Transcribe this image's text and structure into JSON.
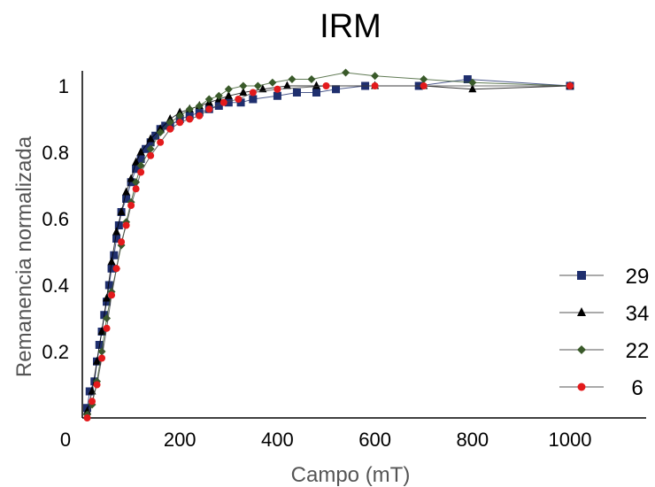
{
  "chart_data": {
    "type": "line",
    "title": "IRM",
    "xlabel": "Campo (mT)",
    "ylabel": "Remanencia normalizada",
    "xlim": [
      0,
      1150
    ],
    "ylim": [
      0,
      1.05
    ],
    "x_ticks": [
      200,
      400,
      600,
      800,
      1000
    ],
    "x_tick_labels": [
      "200",
      "400",
      "600",
      "800",
      "1000"
    ],
    "y_ticks": [
      0.2,
      0.4,
      0.6,
      0.8,
      1
    ],
    "y_tick_labels": [
      "0.2",
      "0.4",
      "0.6",
      "0.8",
      "1"
    ],
    "origin_label": "0",
    "legend_position": "right",
    "series": [
      {
        "name": "29",
        "color": "#1f2f6e",
        "marker": "square",
        "points": [
          [
            10,
            0.03
          ],
          [
            15,
            0.08
          ],
          [
            25,
            0.11
          ],
          [
            30,
            0.17
          ],
          [
            35,
            0.22
          ],
          [
            40,
            0.26
          ],
          [
            45,
            0.31
          ],
          [
            50,
            0.35
          ],
          [
            55,
            0.4
          ],
          [
            60,
            0.45
          ],
          [
            65,
            0.49
          ],
          [
            70,
            0.54
          ],
          [
            75,
            0.58
          ],
          [
            80,
            0.62
          ],
          [
            90,
            0.66
          ],
          [
            100,
            0.71
          ],
          [
            110,
            0.75
          ],
          [
            120,
            0.78
          ],
          [
            130,
            0.81
          ],
          [
            140,
            0.83
          ],
          [
            150,
            0.85
          ],
          [
            160,
            0.87
          ],
          [
            170,
            0.88
          ],
          [
            180,
            0.88
          ],
          [
            200,
            0.9
          ],
          [
            220,
            0.91
          ],
          [
            240,
            0.92
          ],
          [
            260,
            0.93
          ],
          [
            280,
            0.94
          ],
          [
            300,
            0.95
          ],
          [
            325,
            0.95
          ],
          [
            350,
            0.96
          ],
          [
            400,
            0.97
          ],
          [
            440,
            0.98
          ],
          [
            480,
            0.98
          ],
          [
            520,
            0.99
          ],
          [
            580,
            1.0
          ],
          [
            690,
            1.0
          ],
          [
            790,
            1.02
          ],
          [
            1000,
            1.0
          ]
        ]
      },
      {
        "name": "34",
        "color": "#000000",
        "marker": "triangle",
        "points": [
          [
            10,
            0.02
          ],
          [
            20,
            0.08
          ],
          [
            30,
            0.17
          ],
          [
            40,
            0.26
          ],
          [
            50,
            0.36
          ],
          [
            60,
            0.47
          ],
          [
            70,
            0.56
          ],
          [
            80,
            0.62
          ],
          [
            90,
            0.68
          ],
          [
            100,
            0.72
          ],
          [
            110,
            0.77
          ],
          [
            120,
            0.8
          ],
          [
            140,
            0.84
          ],
          [
            160,
            0.87
          ],
          [
            180,
            0.9
          ],
          [
            200,
            0.92
          ],
          [
            220,
            0.93
          ],
          [
            240,
            0.94
          ],
          [
            260,
            0.95
          ],
          [
            280,
            0.96
          ],
          [
            300,
            0.97
          ],
          [
            330,
            0.98
          ],
          [
            370,
            0.99
          ],
          [
            420,
            1.0
          ],
          [
            480,
            1.0
          ],
          [
            600,
            1.0
          ],
          [
            700,
            1.0
          ],
          [
            800,
            0.99
          ],
          [
            1000,
            1.0
          ]
        ]
      },
      {
        "name": "22",
        "color": "#3a5a2a",
        "marker": "diamond",
        "points": [
          [
            10,
            0.01
          ],
          [
            20,
            0.04
          ],
          [
            30,
            0.11
          ],
          [
            40,
            0.2
          ],
          [
            50,
            0.3
          ],
          [
            60,
            0.38
          ],
          [
            70,
            0.45
          ],
          [
            80,
            0.52
          ],
          [
            90,
            0.59
          ],
          [
            100,
            0.65
          ],
          [
            110,
            0.71
          ],
          [
            120,
            0.76
          ],
          [
            140,
            0.81
          ],
          [
            160,
            0.86
          ],
          [
            180,
            0.89
          ],
          [
            200,
            0.91
          ],
          [
            220,
            0.93
          ],
          [
            240,
            0.94
          ],
          [
            260,
            0.96
          ],
          [
            280,
            0.97
          ],
          [
            300,
            0.99
          ],
          [
            330,
            1.0
          ],
          [
            360,
            1.0
          ],
          [
            390,
            1.01
          ],
          [
            430,
            1.02
          ],
          [
            470,
            1.02
          ],
          [
            540,
            1.04
          ],
          [
            600,
            1.03
          ],
          [
            700,
            1.02
          ],
          [
            800,
            1.01
          ],
          [
            1000,
            1.0
          ]
        ]
      },
      {
        "name": "6",
        "color": "#e31a1c",
        "marker": "circle",
        "points": [
          [
            10,
            0.0
          ],
          [
            20,
            0.05
          ],
          [
            30,
            0.1
          ],
          [
            40,
            0.18
          ],
          [
            50,
            0.27
          ],
          [
            60,
            0.37
          ],
          [
            70,
            0.45
          ],
          [
            80,
            0.53
          ],
          [
            90,
            0.58
          ],
          [
            100,
            0.64
          ],
          [
            110,
            0.69
          ],
          [
            120,
            0.74
          ],
          [
            140,
            0.79
          ],
          [
            160,
            0.83
          ],
          [
            180,
            0.87
          ],
          [
            200,
            0.89
          ],
          [
            220,
            0.9
          ],
          [
            240,
            0.91
          ],
          [
            260,
            0.93
          ],
          [
            290,
            0.95
          ],
          [
            320,
            0.96
          ],
          [
            350,
            0.98
          ],
          [
            400,
            0.99
          ],
          [
            500,
            1.0
          ],
          [
            600,
            1.0
          ],
          [
            700,
            1.0
          ],
          [
            1000,
            1.0
          ]
        ]
      }
    ]
  }
}
